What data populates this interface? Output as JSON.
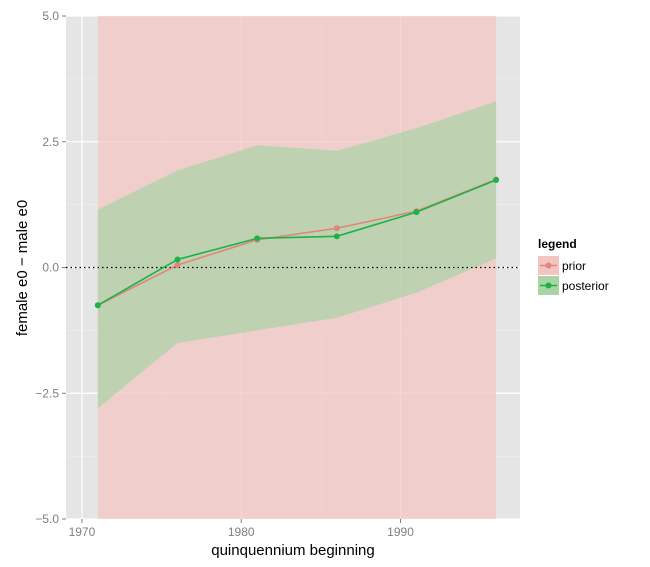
{
  "chart_data": {
    "type": "line",
    "title": "",
    "xlabel": "quinquennium beginning",
    "ylabel": "female e0 − male e0",
    "xlim": [
      1969,
      1997.5
    ],
    "ylim": [
      -5.0,
      5.0
    ],
    "xticks": [
      1970,
      1980,
      1990
    ],
    "yticks": [
      -5.0,
      -2.5,
      0.0,
      2.5,
      5.0
    ],
    "ytick_labels": [
      "−5.0",
      "−2.5",
      "0.0",
      "2.5",
      "5.0"
    ],
    "grid": true,
    "reference_line": {
      "y": 0,
      "style": "dotted"
    },
    "legend": {
      "title": "legend",
      "placement": "right",
      "entries": [
        "prior",
        "posterior"
      ]
    },
    "series": [
      {
        "name": "prior",
        "color": "#e0867a",
        "band_color": "#f4c4c2",
        "x": [
          1971,
          1976,
          1981,
          1986,
          1991,
          1996
        ],
        "values": [
          -0.75,
          0.05,
          0.55,
          0.78,
          1.12,
          1.75
        ],
        "lower": [
          -5.0,
          -5.0,
          -5.0,
          -5.0,
          -5.0,
          -5.0
        ],
        "upper": [
          5.0,
          5.0,
          5.0,
          5.0,
          5.0,
          5.0
        ]
      },
      {
        "name": "posterior",
        "color": "#1db247",
        "band_color": "#aad4a6",
        "x": [
          1971,
          1976,
          1981,
          1986,
          1991,
          1996
        ],
        "values": [
          -0.75,
          0.16,
          0.58,
          0.62,
          1.1,
          1.74
        ],
        "lower": [
          -2.8,
          -1.5,
          -1.25,
          -1.0,
          -0.5,
          0.18
        ],
        "upper": [
          1.15,
          1.93,
          2.43,
          2.32,
          2.77,
          3.3
        ]
      }
    ]
  }
}
